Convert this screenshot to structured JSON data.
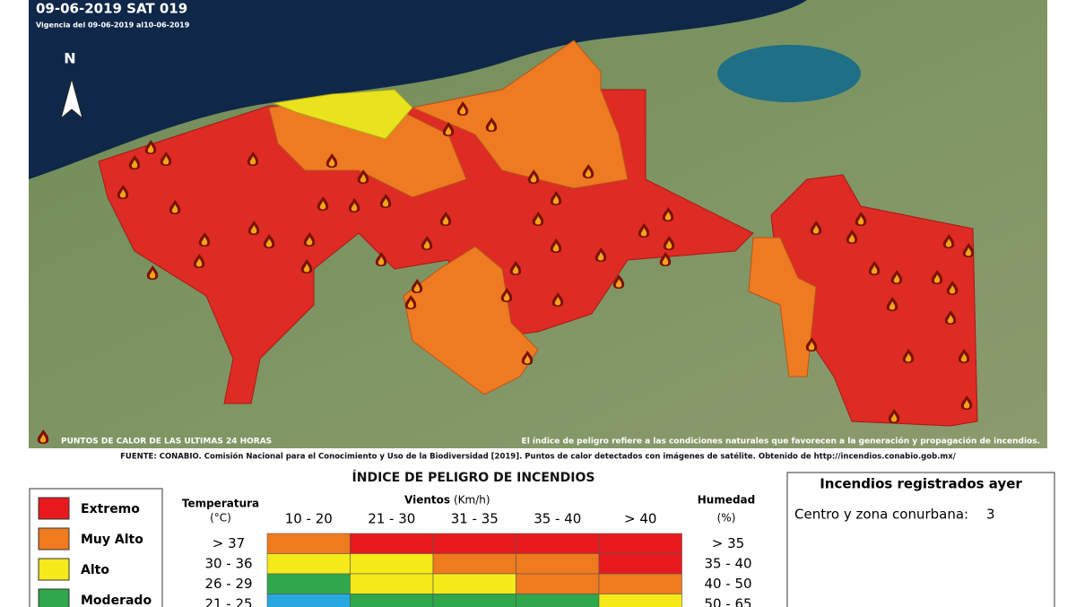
{
  "header": {
    "title": "09-06-2019 SAT 019",
    "validity": "Vigencia del 09-06-2019 al10-06-2019",
    "north": "N"
  },
  "map": {
    "hotspots_label": "PUNTOS DE CALOR DE LAS ULTIMAS 24 HORAS",
    "note": "El índice de peligro refiere a las condiciones naturales que favorecen a la generación y propagación de incendios.",
    "source": "FUENTE: CONABIO. Comisión Nacional para el Conocimiento y Uso de la Biodiversidad [2019]. Puntos de calor detectados con imágenes de satélite. Obtenido de http://incendios.conabio.gob.mx/"
  },
  "index": {
    "title": "ÍNDICE DE PELIGRO DE INCENDIOS",
    "legend": [
      {
        "label": "Extremo",
        "color": "#e8191c"
      },
      {
        "label": "Muy Alto",
        "color": "#f07a1e"
      },
      {
        "label": "Alto",
        "color": "#f5ea1a"
      },
      {
        "label": "Moderado",
        "color": "#2ea84a"
      }
    ],
    "temperature_header": "Temperatura",
    "temperature_unit": "(°C)",
    "wind_header": "Vientos",
    "wind_unit": "(Km/h)",
    "humidity_header": "Humedad",
    "humidity_unit": "(%)",
    "wind_columns": [
      "10 - 20",
      "21 - 30",
      "31 - 35",
      "35 - 40",
      "> 40"
    ],
    "rows": [
      {
        "temperature": "> 37",
        "humidity": "> 35",
        "colors": [
          "#f07a1e",
          "#e8191c",
          "#e8191c",
          "#e8191c",
          "#e8191c"
        ]
      },
      {
        "temperature": "30 - 36",
        "humidity": "35 - 40",
        "colors": [
          "#f5ea1a",
          "#f5ea1a",
          "#f07a1e",
          "#f07a1e",
          "#e8191c"
        ]
      },
      {
        "temperature": "26 - 29",
        "humidity": "40 - 50",
        "colors": [
          "#2ea84a",
          "#f5ea1a",
          "#f5ea1a",
          "#f07a1e",
          "#f07a1e"
        ]
      },
      {
        "temperature": "21 - 25",
        "humidity": "50 - 65",
        "colors": [
          "#29a8e0",
          "#2ea84a",
          "#2ea84a",
          "#2ea84a",
          "#f5ea1a"
        ]
      }
    ]
  },
  "fires_box": {
    "title": "Incendios registrados ayer",
    "label": "Centro y zona conurbana:",
    "value": "3"
  }
}
